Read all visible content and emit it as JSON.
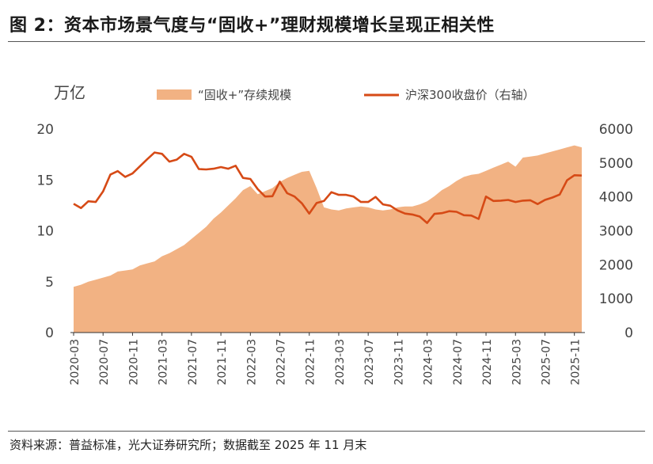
{
  "header": {
    "title": "图 2：资本市场景气度与“固收+”理财规模增长呈现正相关性"
  },
  "footer": {
    "source": "资料来源：普益标准，光大证券研究所；数据截至 2025 年 11 月末"
  },
  "colors": {
    "area": "#f2b283",
    "line": "#d64a16",
    "text": "#444444",
    "axis": "#333333"
  },
  "chart_data": {
    "type": "area",
    "title": "",
    "ylabel_left": "万亿",
    "ylim_left": [
      0,
      20
    ],
    "yticks_left": [
      "0",
      "5",
      "10",
      "15",
      "20"
    ],
    "ylim_right": [
      0,
      6000
    ],
    "yticks_right": [
      "0",
      "1000",
      "2000",
      "3000",
      "4000",
      "5000",
      "6000"
    ],
    "xtick_labels": [
      "2020-03",
      "2020-07",
      "2020-11",
      "2021-03",
      "2021-07",
      "2021-11",
      "2022-03",
      "2022-07",
      "2022-11",
      "2023-03",
      "2023-07",
      "2023-11",
      "2024-03",
      "2024-07",
      "2024-11",
      "2025-03",
      "2025-07",
      "2025-11"
    ],
    "legend_position": "top",
    "series": [
      {
        "name": "“固收+”存续规模",
        "axis": "left",
        "kind": "area",
        "values": [
          4.5,
          4.7,
          5.0,
          5.2,
          5.4,
          5.6,
          6.0,
          6.1,
          6.2,
          6.6,
          6.8,
          7.0,
          7.5,
          7.8,
          8.2,
          8.6,
          9.2,
          9.8,
          10.4,
          11.2,
          11.8,
          12.5,
          13.2,
          14.0,
          14.4,
          13.6,
          13.9,
          14.2,
          14.8,
          15.2,
          15.5,
          15.8,
          15.9,
          14.2,
          12.3,
          12.1,
          12.0,
          12.2,
          12.3,
          12.4,
          12.3,
          12.1,
          12.0,
          12.1,
          12.3,
          12.4,
          12.4,
          12.6,
          12.9,
          13.4,
          14.0,
          14.4,
          14.9,
          15.3,
          15.5,
          15.6,
          15.9,
          16.2,
          16.5,
          16.8,
          16.3,
          17.2,
          17.3,
          17.4,
          17.6,
          17.8,
          18.0,
          18.2,
          18.4,
          18.2
        ]
      },
      {
        "name": "沪深300收盘价（右轴）",
        "axis": "right",
        "kind": "line",
        "values": [
          3795,
          3670,
          3870,
          3850,
          4160,
          4660,
          4760,
          4590,
          4690,
          4900,
          5110,
          5310,
          5270,
          5040,
          5100,
          5270,
          5180,
          4820,
          4810,
          4830,
          4880,
          4830,
          4920,
          4560,
          4530,
          4230,
          4010,
          4020,
          4450,
          4110,
          4010,
          3810,
          3510,
          3820,
          3880,
          4140,
          4060,
          4060,
          4010,
          3850,
          3850,
          4000,
          3780,
          3740,
          3600,
          3510,
          3480,
          3420,
          3230,
          3500,
          3520,
          3580,
          3560,
          3460,
          3450,
          3350,
          4010,
          3880,
          3890,
          3910,
          3850,
          3890,
          3900,
          3790,
          3910,
          3980,
          4070,
          4490,
          4640,
          4630
        ]
      }
    ]
  }
}
